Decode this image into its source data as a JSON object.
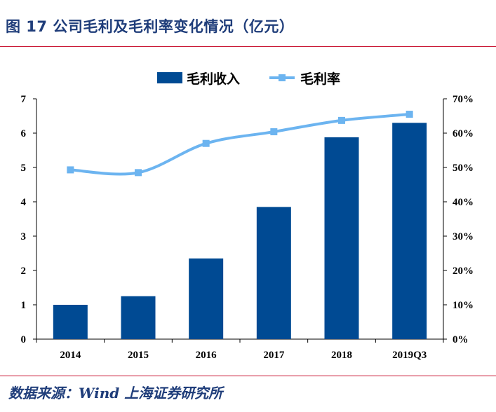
{
  "title": "图 17 公司毛利及毛利率变化情况（亿元）",
  "source": "数据来源：Wind  上海证券研究所",
  "chart_data": {
    "type": "bar",
    "categories": [
      "2014",
      "2015",
      "2016",
      "2017",
      "2018",
      "2019Q3"
    ],
    "series": [
      {
        "name": "毛利收入",
        "type": "bar",
        "axis": "left",
        "color": "#004a93",
        "values": [
          1.0,
          1.25,
          2.35,
          3.85,
          5.88,
          6.3
        ]
      },
      {
        "name": "毛利率",
        "type": "line",
        "axis": "right",
        "color": "#6cb4f0",
        "values": [
          49.3,
          48.5,
          57.0,
          60.4,
          63.7,
          65.5
        ]
      }
    ],
    "left_axis": {
      "ylim": [
        0,
        7
      ],
      "ticks": [
        "0",
        "1",
        "2",
        "3",
        "4",
        "5",
        "6",
        "7"
      ]
    },
    "right_axis": {
      "ylim": [
        0,
        70
      ],
      "ticks": [
        "0%",
        "10%",
        "20%",
        "30%",
        "40%",
        "50%",
        "60%",
        "70%"
      ]
    },
    "legend": {
      "position": "top-center"
    },
    "grid": false
  }
}
